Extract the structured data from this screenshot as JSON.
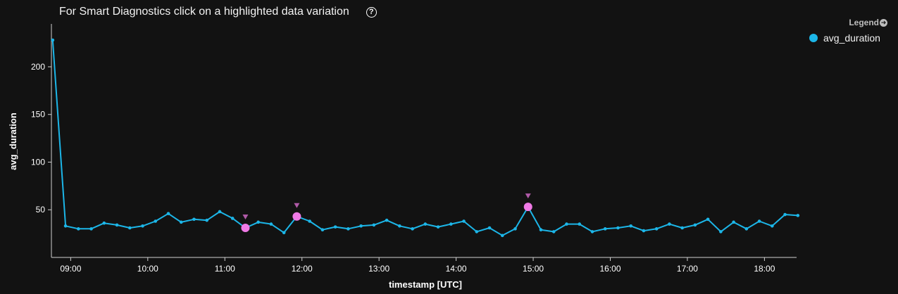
{
  "header": {
    "title": "For Smart Diagnostics click on a highlighted data variation",
    "help_icon": "question-circle-icon",
    "help_glyph": "?"
  },
  "legend": {
    "title": "Legend",
    "toggle_icon": "arrow-right-circle-icon",
    "items": [
      {
        "label": "avg_duration",
        "color": "#1cb6e8"
      }
    ]
  },
  "colors": {
    "line": "#1cb6e8",
    "anomaly": "#f07ae6",
    "marker": "#b05aa8",
    "axis": "#d0d0d0"
  },
  "chart_data": {
    "type": "line",
    "title": "For Smart Diagnostics click on a highlighted data variation",
    "xlabel": "timestamp [UTC]",
    "ylabel": "avg_duration",
    "ylim": [
      0,
      245
    ],
    "xlim": [
      "08:45",
      "18:25"
    ],
    "x_ticks": [
      "09:00",
      "10:00",
      "11:00",
      "12:00",
      "13:00",
      "14:00",
      "15:00",
      "16:00",
      "17:00",
      "18:00"
    ],
    "y_ticks": [
      50,
      100,
      150,
      200
    ],
    "grid": false,
    "legend_position": "top-right",
    "series": [
      {
        "name": "avg_duration",
        "x": [
          "08:46",
          "08:56",
          "09:06",
          "09:16",
          "09:26",
          "09:36",
          "09:46",
          "09:56",
          "10:06",
          "10:16",
          "10:26",
          "10:36",
          "10:46",
          "10:56",
          "11:06",
          "11:16",
          "11:26",
          "11:36",
          "11:46",
          "11:56",
          "12:06",
          "12:16",
          "12:26",
          "12:36",
          "12:46",
          "12:56",
          "13:06",
          "13:16",
          "13:26",
          "13:36",
          "13:46",
          "13:56",
          "14:06",
          "14:16",
          "14:26",
          "14:36",
          "14:46",
          "14:56",
          "15:06",
          "15:16",
          "15:26",
          "15:36",
          "15:46",
          "15:56",
          "16:06",
          "16:16",
          "16:26",
          "16:36",
          "16:46",
          "16:56",
          "17:06",
          "17:16",
          "17:26",
          "17:36",
          "17:46",
          "17:56",
          "18:06",
          "18:16",
          "18:26"
        ],
        "values": [
          228,
          33,
          30,
          30,
          36,
          34,
          31,
          33,
          38,
          46,
          37,
          40,
          39,
          48,
          41,
          31,
          37,
          35,
          26,
          43,
          38,
          29,
          32,
          30,
          33,
          34,
          39,
          33,
          30,
          35,
          32,
          35,
          38,
          27,
          31,
          23,
          30,
          53,
          29,
          27,
          35,
          35,
          27,
          30,
          31,
          33,
          28,
          30,
          35,
          31,
          34,
          40,
          27,
          37,
          30,
          38,
          33,
          45,
          44
        ],
        "anomalies": [
          "11:16",
          "11:56",
          "14:56"
        ]
      }
    ]
  }
}
